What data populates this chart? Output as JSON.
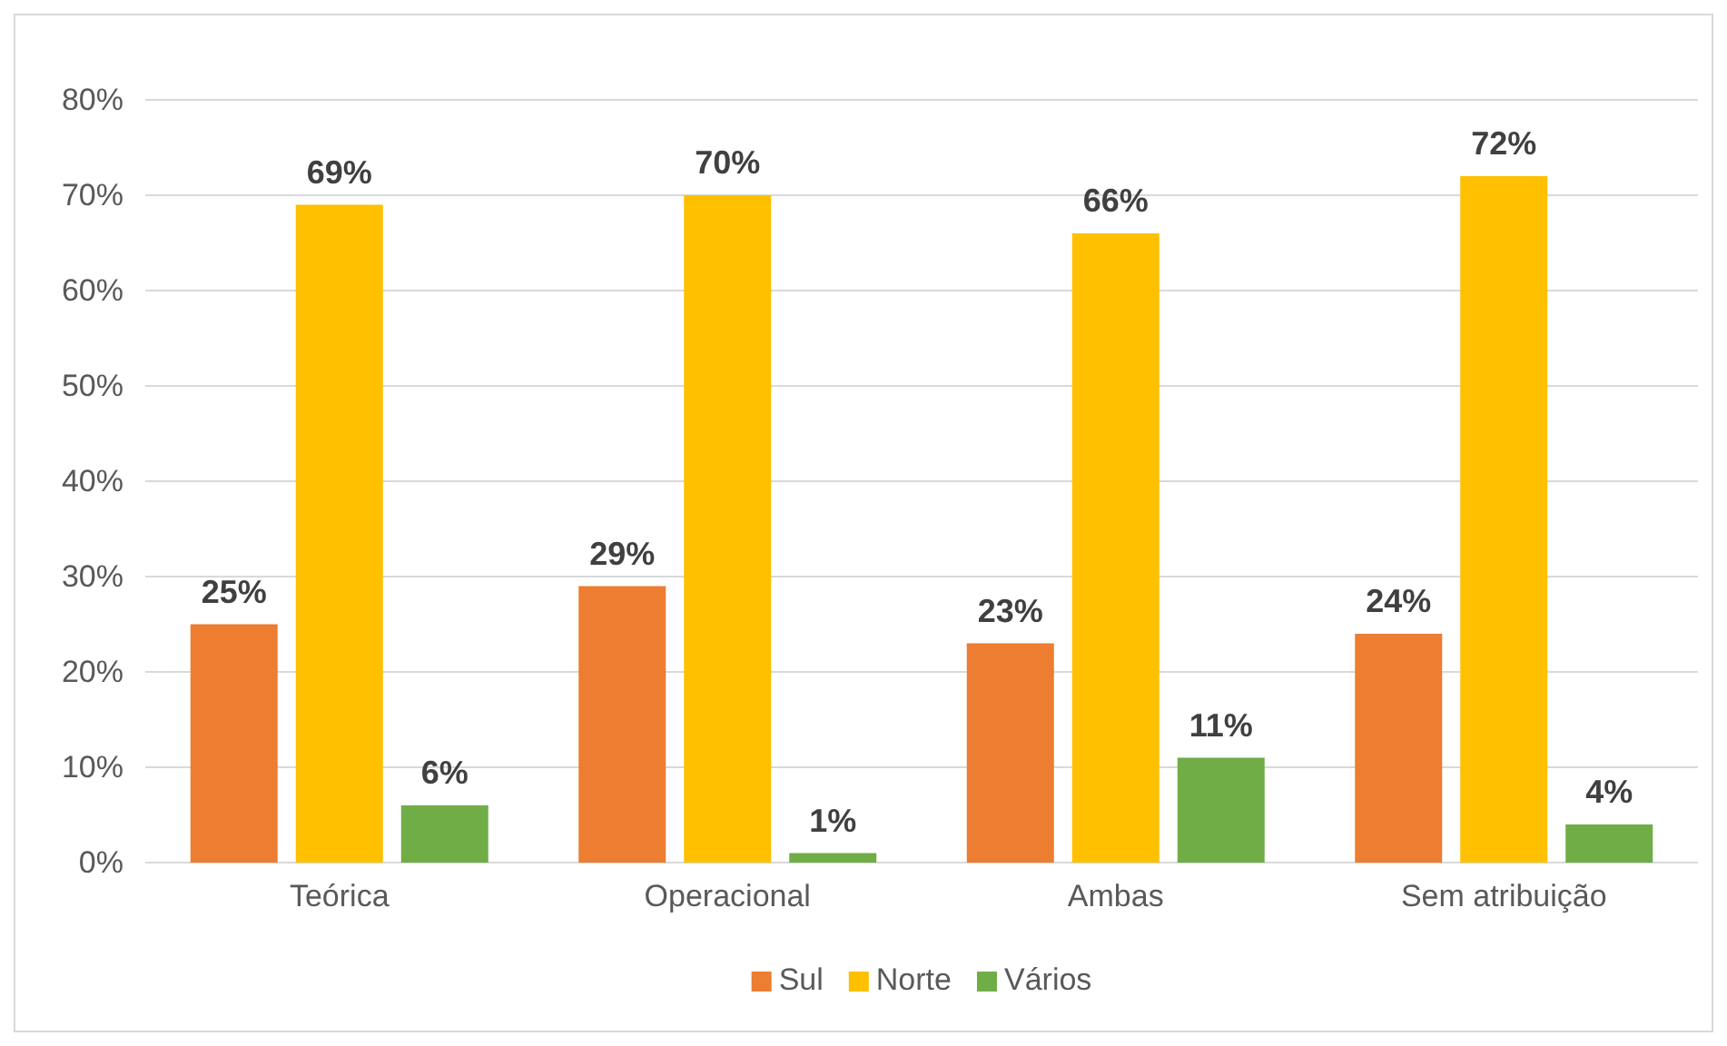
{
  "chart_data": {
    "type": "bar",
    "categories": [
      "Teórica",
      "Operacional",
      "Ambas",
      "Sem atribuição"
    ],
    "series": [
      {
        "name": "Sul",
        "color": "#ed7d31",
        "values": [
          25,
          29,
          23,
          24
        ],
        "value_labels": [
          "25%",
          "29%",
          "23%",
          "24%"
        ]
      },
      {
        "name": "Norte",
        "color": "#ffc000",
        "values": [
          69,
          70,
          66,
          72
        ],
        "value_labels": [
          "69%",
          "70%",
          "66%",
          "72%"
        ]
      },
      {
        "name": "Vários",
        "color": "#70ad47",
        "values": [
          6,
          1,
          11,
          4
        ],
        "value_labels": [
          "6%",
          "1%",
          "11%",
          "4%"
        ]
      }
    ],
    "ylim": [
      0,
      80
    ],
    "yticks": [
      {
        "value": 0,
        "label": "0%"
      },
      {
        "value": 10,
        "label": "10%"
      },
      {
        "value": 20,
        "label": "20%"
      },
      {
        "value": 30,
        "label": "30%"
      },
      {
        "value": 40,
        "label": "40%"
      },
      {
        "value": 50,
        "label": "50%"
      },
      {
        "value": 60,
        "label": "60%"
      },
      {
        "value": 70,
        "label": "70%"
      },
      {
        "value": 80,
        "label": "80%"
      }
    ],
    "grid": "y",
    "legend": "bottom"
  }
}
